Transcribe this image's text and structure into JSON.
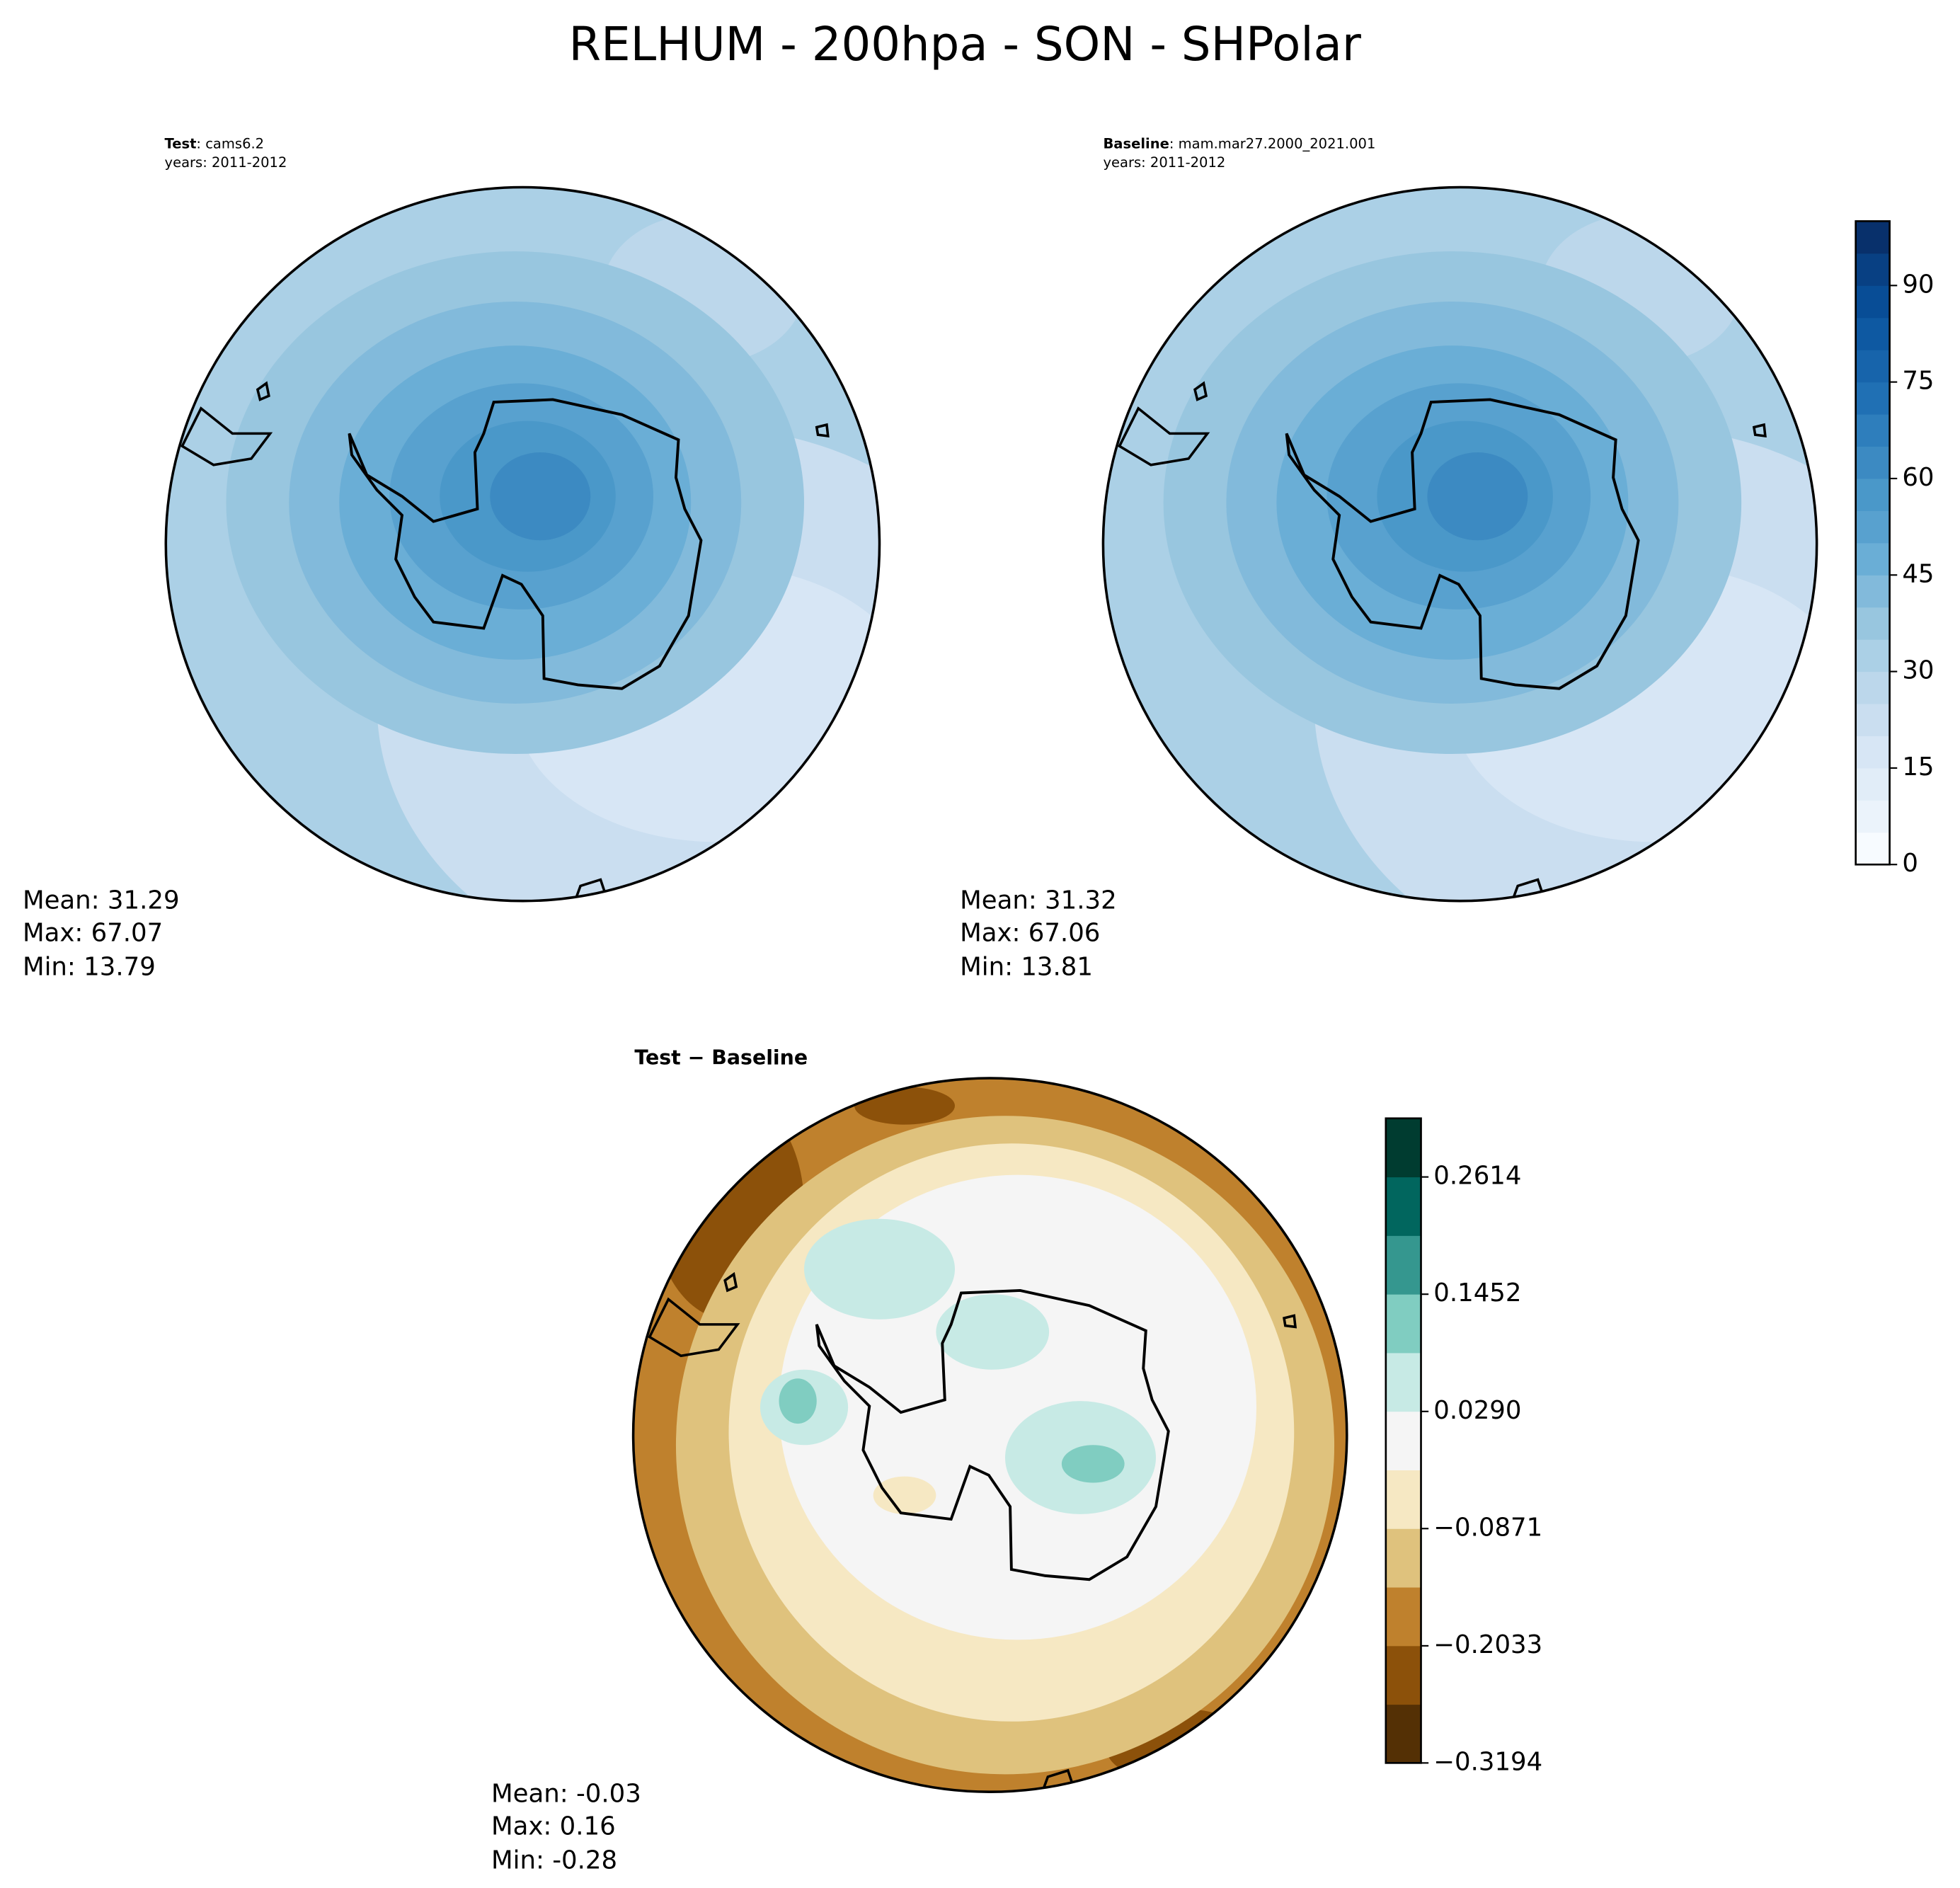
{
  "title": "RELHUM - 200hpa - SON - SHPolar",
  "panels": [
    {
      "label_bold": "Test",
      "label_text": ": cams6.2",
      "years": "years: 2011-2012",
      "stats": [
        "Mean: 31.29",
        "Max: 67.07",
        "Min: 13.79"
      ]
    },
    {
      "label_bold": "Baseline",
      "label_text": ": mam.mar27.2000_2021.001",
      "years": "years: 2011-2012",
      "stats": [
        "Mean: 31.32",
        "Max: 67.06",
        "Min: 13.81"
      ]
    },
    {
      "label_bold": "Test − Baseline",
      "stats": [
        "Mean: -0.03",
        "Max:  0.16",
        "Min: -0.28"
      ]
    }
  ],
  "colorbars": [
    {
      "lim": [
        0,
        100
      ],
      "ticks": [
        0,
        15,
        30,
        45,
        60,
        75,
        90
      ],
      "colors": [
        "#f7fbff",
        "#ebf3fb",
        "#e1edf8",
        "#d7e6f5",
        "#cadef0",
        "#bcd7eb",
        "#abd0e6",
        "#98c6df",
        "#82badb",
        "#6aaed6",
        "#58a1cf",
        "#4a98c9",
        "#3c8ac2",
        "#2e7ebc",
        "#2070b4",
        "#1764ab",
        "#0e59a2",
        "#084d96",
        "#084083",
        "#08306b"
      ]
    },
    {
      "lim": [
        -0.3194,
        0.3195
      ],
      "ticks": [
        {
          "value": -0.3194,
          "label": "−0.3194"
        },
        {
          "value": -0.2033,
          "label": "−0.2033"
        },
        {
          "value": -0.0871,
          "label": "−0.0871"
        },
        {
          "value": 0.029,
          "label": "0.0290"
        },
        {
          "value": 0.1452,
          "label": "0.1452"
        },
        {
          "value": 0.2614,
          "label": "0.2614"
        }
      ],
      "colors": [
        "#543005",
        "#8c510a",
        "#bf812d",
        "#dfc27d",
        "#f6e8c3",
        "#f5f5f5",
        "#c7eae5",
        "#80cdc1",
        "#35978f",
        "#01665e",
        "#003c30"
      ]
    }
  ]
}
